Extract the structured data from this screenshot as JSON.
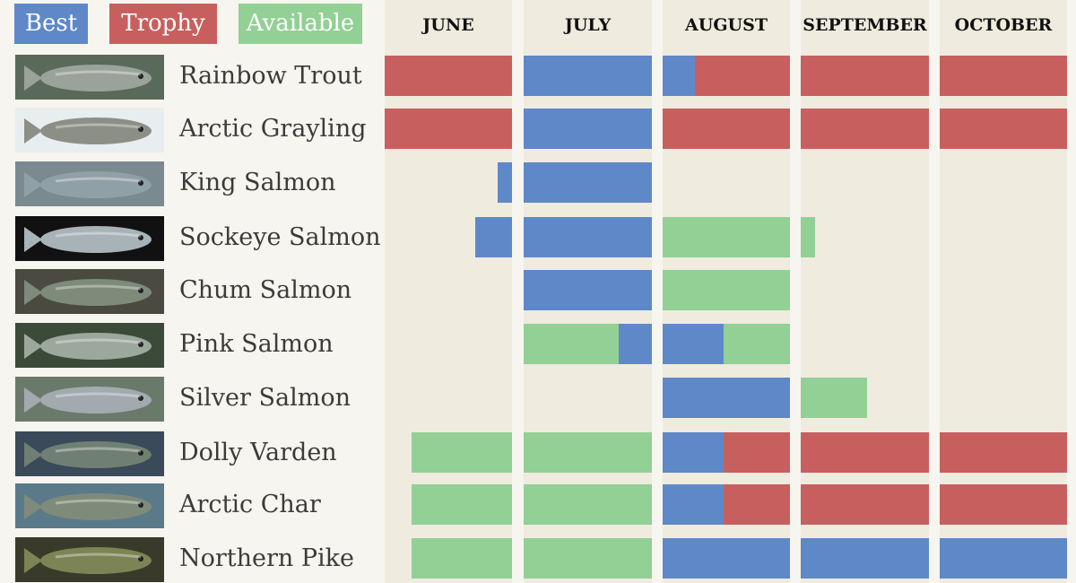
{
  "legend": [
    {
      "label": "Best",
      "color": "#5f88c9"
    },
    {
      "label": "Trophy",
      "color": "#c85f5f"
    },
    {
      "label": "Available",
      "color": "#92d095"
    }
  ],
  "chart_data": {
    "type": "bar",
    "orientation": "horizontal",
    "x_axis_labels": [
      "JUNE",
      "JULY",
      "AUGUST",
      "SEPTEMBER",
      "OCTOBER"
    ],
    "categories": [
      "Rainbow Trout",
      "Arctic Grayling",
      "King Salmon",
      "Sockeye Salmon",
      "Chum Salmon",
      "Pink Salmon",
      "Silver Salmon",
      "Dolly Varden",
      "Arctic Char",
      "Northern Pike"
    ],
    "segments_unit": "fraction of month",
    "rows": [
      {
        "fish": "Rainbow Trout",
        "segments": [
          {
            "month": 0,
            "start": 0,
            "end": 1,
            "status": "Trophy"
          },
          {
            "month": 1,
            "start": 0,
            "end": 1,
            "status": "Best"
          },
          {
            "month": 2,
            "start": 0,
            "end": 0.25,
            "status": "Best"
          },
          {
            "month": 2,
            "start": 0.25,
            "end": 1,
            "status": "Trophy"
          },
          {
            "month": 3,
            "start": 0,
            "end": 1,
            "status": "Trophy"
          },
          {
            "month": 4,
            "start": 0,
            "end": 1,
            "status": "Trophy"
          }
        ]
      },
      {
        "fish": "Arctic Grayling",
        "segments": [
          {
            "month": 0,
            "start": 0,
            "end": 1,
            "status": "Trophy"
          },
          {
            "month": 1,
            "start": 0,
            "end": 1,
            "status": "Best"
          },
          {
            "month": 2,
            "start": 0,
            "end": 1,
            "status": "Trophy"
          },
          {
            "month": 3,
            "start": 0,
            "end": 1,
            "status": "Trophy"
          },
          {
            "month": 4,
            "start": 0,
            "end": 1,
            "status": "Trophy"
          }
        ]
      },
      {
        "fish": "King Salmon",
        "segments": [
          {
            "month": 0,
            "start": 0.89,
            "end": 1,
            "status": "Best"
          },
          {
            "month": 1,
            "start": 0,
            "end": 1,
            "status": "Best"
          }
        ]
      },
      {
        "fish": "Sockeye Salmon",
        "segments": [
          {
            "month": 0,
            "start": 0.71,
            "end": 1,
            "status": "Best"
          },
          {
            "month": 1,
            "start": 0,
            "end": 1,
            "status": "Best"
          },
          {
            "month": 2,
            "start": 0,
            "end": 1,
            "status": "Available"
          },
          {
            "month": 3,
            "start": 0,
            "end": 0.11,
            "status": "Available"
          }
        ]
      },
      {
        "fish": "Chum Salmon",
        "segments": [
          {
            "month": 1,
            "start": 0,
            "end": 1,
            "status": "Best"
          },
          {
            "month": 2,
            "start": 0,
            "end": 1,
            "status": "Available"
          }
        ]
      },
      {
        "fish": "Pink Salmon",
        "segments": [
          {
            "month": 1,
            "start": 0,
            "end": 0.74,
            "status": "Available"
          },
          {
            "month": 1,
            "start": 0.74,
            "end": 1,
            "status": "Best"
          },
          {
            "month": 2,
            "start": 0,
            "end": 0.48,
            "status": "Best"
          },
          {
            "month": 2,
            "start": 0.48,
            "end": 1,
            "status": "Available"
          }
        ]
      },
      {
        "fish": "Silver Salmon",
        "segments": [
          {
            "month": 2,
            "start": 0,
            "end": 1,
            "status": "Best"
          },
          {
            "month": 3,
            "start": 0,
            "end": 0.52,
            "status": "Available"
          }
        ]
      },
      {
        "fish": "Dolly Varden",
        "segments": [
          {
            "month": 0,
            "start": 0.21,
            "end": 1,
            "status": "Available"
          },
          {
            "month": 1,
            "start": 0,
            "end": 1,
            "status": "Available"
          },
          {
            "month": 2,
            "start": 0,
            "end": 0.48,
            "status": "Best"
          },
          {
            "month": 2,
            "start": 0.48,
            "end": 1,
            "status": "Trophy"
          },
          {
            "month": 3,
            "start": 0,
            "end": 1,
            "status": "Trophy"
          },
          {
            "month": 4,
            "start": 0,
            "end": 1,
            "status": "Trophy"
          }
        ]
      },
      {
        "fish": "Arctic Char",
        "segments": [
          {
            "month": 0,
            "start": 0.21,
            "end": 1,
            "status": "Available"
          },
          {
            "month": 1,
            "start": 0,
            "end": 1,
            "status": "Available"
          },
          {
            "month": 2,
            "start": 0,
            "end": 0.48,
            "status": "Best"
          },
          {
            "month": 2,
            "start": 0.48,
            "end": 1,
            "status": "Trophy"
          },
          {
            "month": 3,
            "start": 0,
            "end": 1,
            "status": "Trophy"
          },
          {
            "month": 4,
            "start": 0,
            "end": 1,
            "status": "Trophy"
          }
        ]
      },
      {
        "fish": "Northern Pike",
        "segments": [
          {
            "month": 0,
            "start": 0.21,
            "end": 1,
            "status": "Available"
          },
          {
            "month": 1,
            "start": 0,
            "end": 1,
            "status": "Available"
          },
          {
            "month": 2,
            "start": 0,
            "end": 1,
            "status": "Best"
          },
          {
            "month": 3,
            "start": 0,
            "end": 1,
            "status": "Best"
          },
          {
            "month": 4,
            "start": 0,
            "end": 1,
            "status": "Best"
          }
        ]
      }
    ]
  }
}
